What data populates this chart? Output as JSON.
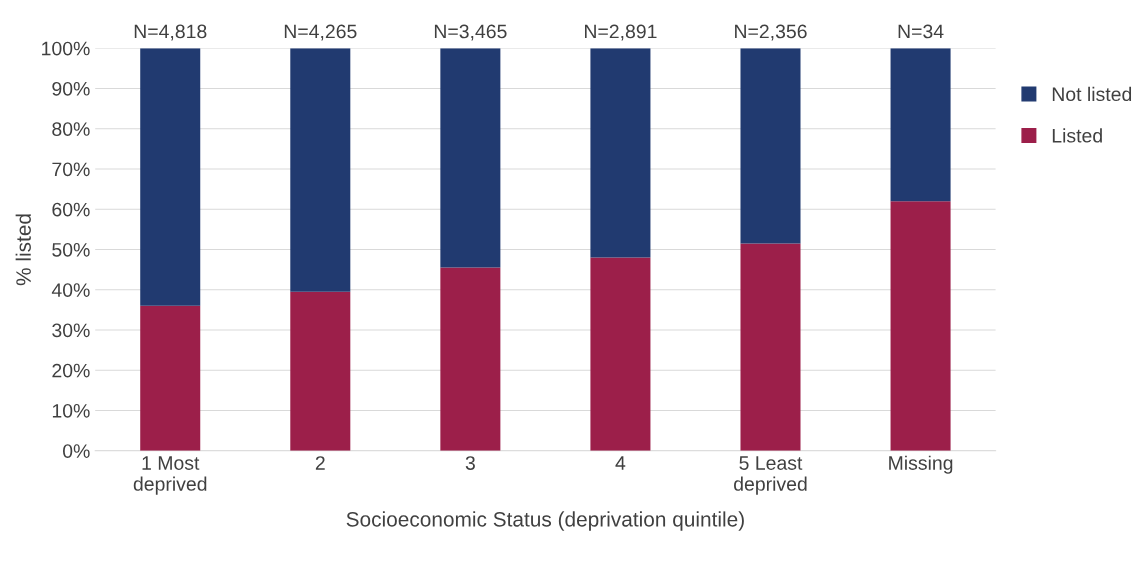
{
  "chart_data": {
    "type": "bar",
    "stacked": true,
    "xlabel": "Socioeconomic Status (deprivation quintile)",
    "ylabel": "% listed",
    "categories": [
      "1 Most\ndeprived",
      "2",
      "3",
      "4",
      "5 Least\ndeprived",
      "Missing"
    ],
    "series": [
      {
        "name": "Listed",
        "color": "#9c1f4a",
        "values": [
          36,
          39.5,
          45.5,
          48,
          51.5,
          62
        ]
      },
      {
        "name": "Not listed",
        "color": "#213a70",
        "values": [
          64,
          60.5,
          54.5,
          52,
          48.5,
          38
        ]
      }
    ],
    "annotations": [
      {
        "text": "N=4,818",
        "x": "1 Most\ndeprived",
        "y": 100
      },
      {
        "text": "N=4,265",
        "x": "2",
        "y": 100
      },
      {
        "text": "N=3,465",
        "x": "3",
        "y": 100
      },
      {
        "text": "N=2,891",
        "x": "4",
        "y": 100
      },
      {
        "text": "N=2,356",
        "x": "5 Least\ndeprived",
        "y": 100
      },
      {
        "text": "N=34",
        "x": "Missing",
        "y": 100
      }
    ],
    "ylim": [
      0,
      100
    ],
    "yticks": [
      {
        "value": 0,
        "label": "0%"
      },
      {
        "value": 10,
        "label": "10%"
      },
      {
        "value": 20,
        "label": "20%"
      },
      {
        "value": 30,
        "label": "30%"
      },
      {
        "value": 40,
        "label": "40%"
      },
      {
        "value": 50,
        "label": "50%"
      },
      {
        "value": 60,
        "label": "60%"
      },
      {
        "value": 70,
        "label": "70%"
      },
      {
        "value": 80,
        "label": "80%"
      },
      {
        "value": 90,
        "label": "90%"
      },
      {
        "value": 100,
        "label": "100%"
      }
    ],
    "grid": "y",
    "legend": "right"
  }
}
